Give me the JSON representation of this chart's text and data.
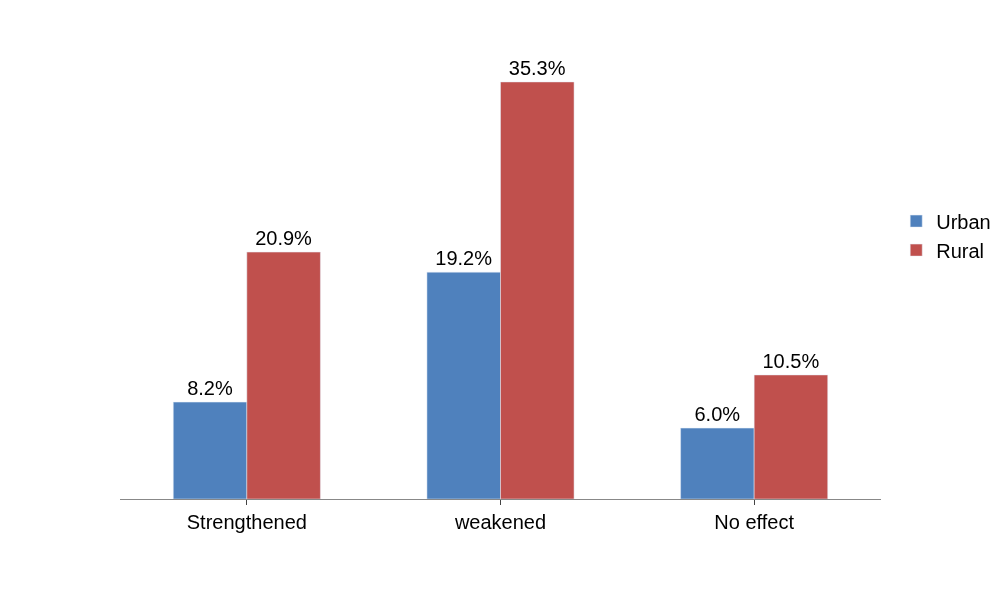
{
  "chart_data": {
    "type": "bar",
    "categories": [
      "Strengthened",
      "weakened",
      "No effect"
    ],
    "series": [
      {
        "name": "Urban",
        "color": "#4f81bd",
        "values": [
          8.2,
          19.2,
          6.0
        ],
        "value_labels": [
          "8.2%",
          "19.2%",
          "6.0%"
        ]
      },
      {
        "name": "Rural",
        "color": "#c0504d",
        "values": [
          20.9,
          35.3,
          10.5
        ],
        "value_labels": [
          "20.9%",
          "35.3%",
          "10.5%"
        ]
      }
    ],
    "legend": "right"
  }
}
